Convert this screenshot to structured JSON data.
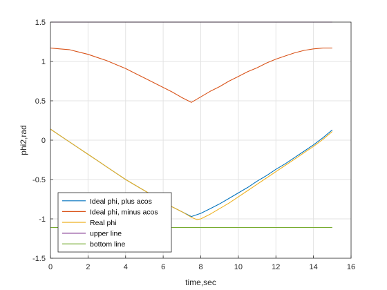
{
  "chart_data": {
    "type": "line",
    "title": "",
    "xlabel": "time,sec",
    "ylabel": "phi2,rad",
    "xlim": [
      0,
      16
    ],
    "ylim": [
      -1.5,
      1.5
    ],
    "xticks": [
      0,
      2,
      4,
      6,
      8,
      10,
      12,
      14,
      16
    ],
    "yticks": [
      -1.5,
      -1,
      -0.5,
      0,
      0.5,
      1,
      1.5
    ],
    "grid": true,
    "legend_location": "bottom-left",
    "series": [
      {
        "name": "Ideal phi, plus acos",
        "color": "#0072BD",
        "x": [
          0,
          0.5,
          1,
          1.5,
          2,
          2.5,
          3,
          3.5,
          4,
          4.5,
          5,
          5.5,
          6,
          6.5,
          7,
          7.5,
          8,
          8.5,
          9,
          9.5,
          10,
          10.5,
          11,
          11.5,
          12,
          12.5,
          13,
          13.5,
          14,
          14.5,
          15
        ],
        "y": [
          0.14,
          0.06,
          -0.02,
          -0.1,
          -0.18,
          -0.26,
          -0.34,
          -0.42,
          -0.5,
          -0.57,
          -0.64,
          -0.71,
          -0.78,
          -0.85,
          -0.91,
          -0.97,
          -0.93,
          -0.87,
          -0.81,
          -0.74,
          -0.67,
          -0.6,
          -0.52,
          -0.45,
          -0.37,
          -0.3,
          -0.22,
          -0.14,
          -0.06,
          0.03,
          0.13
        ]
      },
      {
        "name": "Ideal phi, minus acos",
        "color": "#D95319",
        "x": [
          0,
          0.5,
          1,
          1.5,
          2,
          2.5,
          3,
          3.5,
          4,
          4.5,
          5,
          5.5,
          6,
          6.5,
          7,
          7.5,
          8,
          8.5,
          9,
          9.5,
          10,
          10.5,
          11,
          11.5,
          12,
          12.5,
          13,
          13.5,
          14,
          14.5,
          15
        ],
        "y": [
          1.17,
          1.16,
          1.15,
          1.12,
          1.09,
          1.05,
          1.01,
          0.96,
          0.91,
          0.85,
          0.79,
          0.73,
          0.67,
          0.61,
          0.54,
          0.48,
          0.55,
          0.62,
          0.68,
          0.75,
          0.81,
          0.87,
          0.92,
          0.98,
          1.03,
          1.07,
          1.11,
          1.14,
          1.16,
          1.17,
          1.17
        ]
      },
      {
        "name": "Real phi",
        "color": "#EDB120",
        "x": [
          0,
          0.5,
          1,
          1.5,
          2,
          2.5,
          3,
          3.5,
          4,
          4.5,
          5,
          5.5,
          6,
          6.5,
          7,
          7.5,
          7.8,
          8,
          8.5,
          9,
          9.5,
          10,
          10.5,
          11,
          11.5,
          12,
          12.5,
          13,
          13.5,
          14,
          14.5,
          15
        ],
        "y": [
          0.14,
          0.06,
          -0.02,
          -0.1,
          -0.18,
          -0.26,
          -0.34,
          -0.42,
          -0.5,
          -0.57,
          -0.64,
          -0.71,
          -0.78,
          -0.85,
          -0.91,
          -0.98,
          -1.01,
          -1.0,
          -0.94,
          -0.87,
          -0.8,
          -0.72,
          -0.64,
          -0.56,
          -0.48,
          -0.4,
          -0.32,
          -0.24,
          -0.16,
          -0.08,
          0.01,
          0.11
        ]
      },
      {
        "name": "upper line",
        "color": "#7E2F8E",
        "x": [
          0,
          15
        ],
        "y": [
          1.5,
          1.5
        ]
      },
      {
        "name": "bottom line",
        "color": "#77AC30",
        "x": [
          0,
          15
        ],
        "y": [
          -1.11,
          -1.11
        ]
      }
    ]
  }
}
